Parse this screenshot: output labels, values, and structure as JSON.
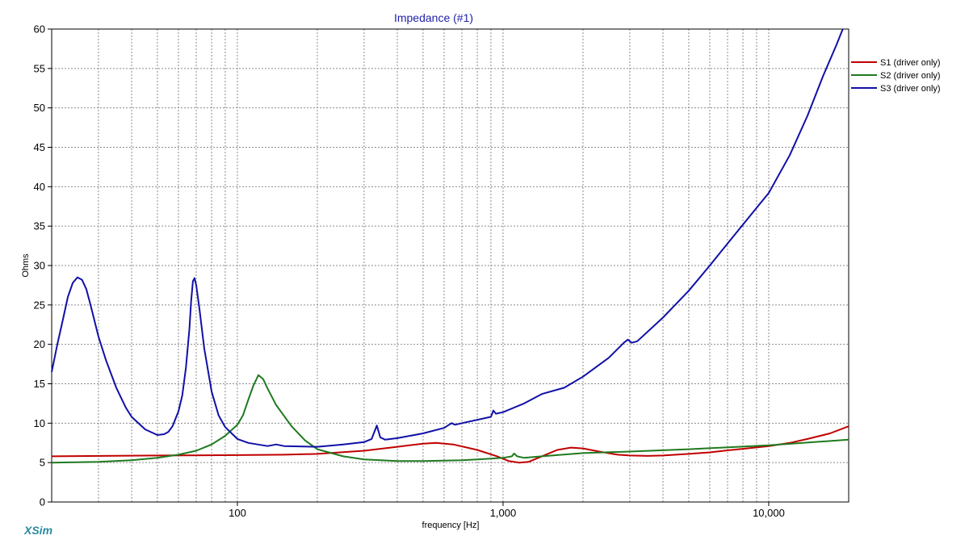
{
  "chart_data": {
    "type": "line",
    "title": "Impedance (#1)",
    "xlabel": "frequency [Hz]",
    "ylabel": "Ohms",
    "xscale": "log",
    "xlim": [
      20,
      20000
    ],
    "ylim": [
      0,
      60
    ],
    "yticks": [
      "0",
      "5",
      "10",
      "15",
      "20",
      "25",
      "30",
      "35",
      "40",
      "45",
      "50",
      "55",
      "60"
    ],
    "xticks": [
      {
        "value": 100,
        "label": "100"
      },
      {
        "value": 1000,
        "label": "1,000"
      },
      {
        "value": 10000,
        "label": "10,000"
      }
    ],
    "grid": true,
    "legend_position": "right",
    "series": [
      {
        "name": "S1 (driver only)",
        "color": "#c00000",
        "points": [
          [
            20,
            5.8
          ],
          [
            50,
            5.9
          ],
          [
            100,
            5.95
          ],
          [
            150,
            6.0
          ],
          [
            200,
            6.1
          ],
          [
            300,
            6.5
          ],
          [
            400,
            7.0
          ],
          [
            500,
            7.4
          ],
          [
            560,
            7.5
          ],
          [
            650,
            7.3
          ],
          [
            800,
            6.6
          ],
          [
            950,
            5.8
          ],
          [
            1050,
            5.2
          ],
          [
            1150,
            5.0
          ],
          [
            1250,
            5.1
          ],
          [
            1400,
            5.8
          ],
          [
            1600,
            6.6
          ],
          [
            1800,
            6.9
          ],
          [
            2000,
            6.8
          ],
          [
            2300,
            6.4
          ],
          [
            2700,
            6.0
          ],
          [
            3000,
            5.9
          ],
          [
            3500,
            5.85
          ],
          [
            4000,
            5.9
          ],
          [
            5000,
            6.1
          ],
          [
            6000,
            6.3
          ],
          [
            7000,
            6.55
          ],
          [
            8000,
            6.75
          ],
          [
            10000,
            7.1
          ],
          [
            12000,
            7.5
          ],
          [
            14000,
            8.0
          ],
          [
            17000,
            8.7
          ],
          [
            20000,
            9.6
          ]
        ]
      },
      {
        "name": "S2 (driver only)",
        "color": "#1f7a1f",
        "points": [
          [
            20,
            5.0
          ],
          [
            30,
            5.1
          ],
          [
            40,
            5.3
          ],
          [
            50,
            5.6
          ],
          [
            60,
            6.0
          ],
          [
            70,
            6.5
          ],
          [
            80,
            7.3
          ],
          [
            90,
            8.4
          ],
          [
            100,
            9.8
          ],
          [
            105,
            11.0
          ],
          [
            110,
            13.0
          ],
          [
            115,
            14.8
          ],
          [
            120,
            16.1
          ],
          [
            125,
            15.6
          ],
          [
            130,
            14.4
          ],
          [
            140,
            12.3
          ],
          [
            160,
            9.6
          ],
          [
            180,
            7.8
          ],
          [
            200,
            6.7
          ],
          [
            250,
            5.8
          ],
          [
            300,
            5.4
          ],
          [
            400,
            5.2
          ],
          [
            500,
            5.2
          ],
          [
            700,
            5.3
          ],
          [
            800,
            5.4
          ],
          [
            900,
            5.5
          ],
          [
            1000,
            5.6
          ],
          [
            1080,
            5.8
          ],
          [
            1100,
            6.15
          ],
          [
            1130,
            5.8
          ],
          [
            1200,
            5.6
          ],
          [
            1400,
            5.8
          ],
          [
            2000,
            6.2
          ],
          [
            3000,
            6.4
          ],
          [
            5000,
            6.7
          ],
          [
            10000,
            7.2
          ],
          [
            20000,
            7.9
          ]
        ]
      },
      {
        "name": "S3 (driver only)",
        "color": "#1010a8",
        "points": [
          [
            20,
            16.5
          ],
          [
            21,
            20
          ],
          [
            22,
            23
          ],
          [
            23,
            26
          ],
          [
            24,
            27.8
          ],
          [
            25,
            28.5
          ],
          [
            26,
            28.2
          ],
          [
            27,
            27
          ],
          [
            28,
            25
          ],
          [
            30,
            21
          ],
          [
            32,
            18
          ],
          [
            35,
            14.5
          ],
          [
            38,
            12
          ],
          [
            40,
            10.8
          ],
          [
            45,
            9.2
          ],
          [
            50,
            8.5
          ],
          [
            53,
            8.6
          ],
          [
            55,
            8.9
          ],
          [
            57,
            9.6
          ],
          [
            60,
            11.5
          ],
          [
            62,
            13.5
          ],
          [
            64,
            17
          ],
          [
            66,
            22
          ],
          [
            67,
            25.5
          ],
          [
            68,
            28
          ],
          [
            69,
            28.4
          ],
          [
            70,
            27.5
          ],
          [
            72,
            24.5
          ],
          [
            75,
            19.5
          ],
          [
            80,
            14
          ],
          [
            85,
            11
          ],
          [
            90,
            9.5
          ],
          [
            100,
            8.0
          ],
          [
            110,
            7.5
          ],
          [
            130,
            7.1
          ],
          [
            140,
            7.3
          ],
          [
            150,
            7.1
          ],
          [
            200,
            7.0
          ],
          [
            250,
            7.3
          ],
          [
            300,
            7.6
          ],
          [
            320,
            8.0
          ],
          [
            335,
            9.7
          ],
          [
            345,
            8.2
          ],
          [
            360,
            7.9
          ],
          [
            400,
            8.1
          ],
          [
            500,
            8.7
          ],
          [
            600,
            9.4
          ],
          [
            640,
            10.0
          ],
          [
            660,
            9.8
          ],
          [
            700,
            10.0
          ],
          [
            900,
            10.8
          ],
          [
            920,
            11.6
          ],
          [
            940,
            11.2
          ],
          [
            1000,
            11.4
          ],
          [
            1200,
            12.5
          ],
          [
            1400,
            13.7
          ],
          [
            1700,
            14.5
          ],
          [
            2000,
            15.9
          ],
          [
            2500,
            18.3
          ],
          [
            2850,
            20.2
          ],
          [
            2950,
            20.6
          ],
          [
            3050,
            20.2
          ],
          [
            3200,
            20.4
          ],
          [
            4000,
            23.4
          ],
          [
            5000,
            26.8
          ],
          [
            6000,
            30.0
          ],
          [
            7000,
            32.8
          ],
          [
            8000,
            35.2
          ],
          [
            10000,
            39.2
          ],
          [
            12000,
            44.0
          ],
          [
            14000,
            49.0
          ],
          [
            16000,
            54.0
          ],
          [
            18000,
            58.0
          ],
          [
            19000,
            60.0
          ]
        ]
      }
    ]
  },
  "branding": "XSim"
}
